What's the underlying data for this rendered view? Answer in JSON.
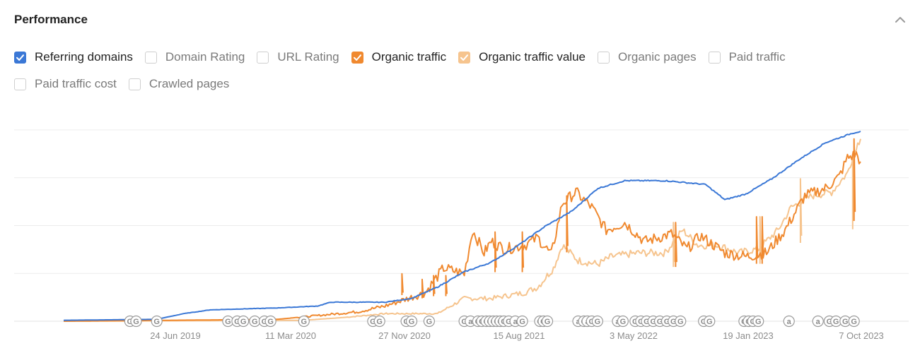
{
  "header": {
    "title": "Performance"
  },
  "options": [
    {
      "label": "Referring domains",
      "checked": true,
      "color": "#3b78d6"
    },
    {
      "label": "Domain Rating",
      "checked": false
    },
    {
      "label": "URL Rating",
      "checked": false
    },
    {
      "label": "Organic traffic",
      "checked": true,
      "color": "#f0892f"
    },
    {
      "label": "Organic traffic value",
      "checked": true,
      "color": "#f6c48e"
    },
    {
      "label": "Organic pages",
      "checked": false
    },
    {
      "label": "Paid traffic",
      "checked": false
    },
    {
      "label": "Paid traffic cost",
      "checked": false
    },
    {
      "label": "Crawled pages",
      "checked": false
    }
  ],
  "chart_data": {
    "type": "line",
    "x_ticks": [
      "24 Jun 2019",
      "11 Mar 2020",
      "27 Nov 2020",
      "15 Aug 2021",
      "3 May 2022",
      "19 Jan 2023",
      "7 Oct 2023"
    ],
    "x_range": [
      "2018-11-01",
      "2023-11-01"
    ],
    "y_range": [
      0,
      100
    ],
    "grid": true,
    "series": [
      {
        "name": "Referring domains",
        "color": "#3b78d6",
        "points": [
          [
            "2018-11-01",
            0.5
          ],
          [
            "2019-06-01",
            1
          ],
          [
            "2019-08-01",
            4
          ],
          [
            "2019-10-01",
            6
          ],
          [
            "2020-03-01",
            7
          ],
          [
            "2020-06-01",
            8
          ],
          [
            "2020-07-01",
            10
          ],
          [
            "2020-11-01",
            10
          ],
          [
            "2021-01-01",
            12
          ],
          [
            "2021-03-01",
            18
          ],
          [
            "2021-05-01",
            26
          ],
          [
            "2021-07-01",
            31
          ],
          [
            "2021-09-01",
            40
          ],
          [
            "2021-11-01",
            50
          ],
          [
            "2022-01-01",
            58
          ],
          [
            "2022-03-01",
            70
          ],
          [
            "2022-05-01",
            74
          ],
          [
            "2022-08-01",
            74
          ],
          [
            "2022-11-01",
            72
          ],
          [
            "2022-12-15",
            64
          ],
          [
            "2023-02-01",
            67
          ],
          [
            "2023-04-01",
            75
          ],
          [
            "2023-06-01",
            85
          ],
          [
            "2023-08-01",
            94
          ],
          [
            "2023-10-01",
            99
          ],
          [
            "2023-10-20",
            100
          ]
        ]
      },
      {
        "name": "Organic traffic",
        "color": "#f0892f",
        "points": [
          [
            "2018-11-01",
            0
          ],
          [
            "2020-03-01",
            1
          ],
          [
            "2020-09-01",
            5
          ],
          [
            "2020-11-01",
            8
          ],
          [
            "2021-02-01",
            15
          ],
          [
            "2021-03-15",
            28
          ],
          [
            "2021-05-01",
            25
          ],
          [
            "2021-05-20",
            48
          ],
          [
            "2021-06-15",
            36
          ],
          [
            "2021-07-01",
            42
          ],
          [
            "2021-08-01",
            38
          ],
          [
            "2021-09-15",
            40
          ],
          [
            "2021-10-15",
            44
          ],
          [
            "2021-11-15",
            35
          ],
          [
            "2021-12-10",
            62
          ],
          [
            "2022-01-10",
            68
          ],
          [
            "2022-02-15",
            60
          ],
          [
            "2022-03-20",
            48
          ],
          [
            "2022-05-01",
            52
          ],
          [
            "2022-06-15",
            42
          ],
          [
            "2022-08-15",
            46
          ],
          [
            "2022-09-20",
            38
          ],
          [
            "2022-10-20",
            45
          ],
          [
            "2022-12-15",
            36
          ],
          [
            "2023-02-01",
            34
          ],
          [
            "2023-03-20",
            36
          ],
          [
            "2023-05-01",
            48
          ],
          [
            "2023-06-15",
            66
          ],
          [
            "2023-08-01",
            70
          ],
          [
            "2023-09-01",
            76
          ],
          [
            "2023-09-20",
            86
          ],
          [
            "2023-10-10",
            88
          ],
          [
            "2023-10-20",
            84
          ]
        ],
        "spikes": [
          [
            "2020-12-10",
            25
          ],
          [
            "2021-01-25",
            22
          ],
          [
            "2021-02-20",
            24
          ],
          [
            "2021-03-20",
            24
          ],
          [
            "2021-07-10",
            47
          ],
          [
            "2021-09-10",
            47
          ],
          [
            "2021-12-20",
            66
          ],
          [
            "2022-08-25",
            52
          ],
          [
            "2023-02-25",
            55
          ],
          [
            "2023-03-10",
            55
          ],
          [
            "2023-10-05",
            96
          ]
        ]
      },
      {
        "name": "Organic traffic value",
        "color": "#f6c48e",
        "points": [
          [
            "2018-11-01",
            0
          ],
          [
            "2020-05-01",
            0.5
          ],
          [
            "2020-08-01",
            2
          ],
          [
            "2020-11-01",
            4
          ],
          [
            "2021-03-01",
            4
          ],
          [
            "2021-05-01",
            12
          ],
          [
            "2021-07-01",
            12
          ],
          [
            "2021-09-15",
            15
          ],
          [
            "2021-10-15",
            18
          ],
          [
            "2021-11-20",
            28
          ],
          [
            "2021-12-10",
            40
          ],
          [
            "2022-01-15",
            32
          ],
          [
            "2022-03-01",
            30
          ],
          [
            "2022-04-01",
            34
          ],
          [
            "2022-06-01",
            36
          ],
          [
            "2022-08-01",
            36
          ],
          [
            "2022-09-10",
            48
          ],
          [
            "2022-10-15",
            40
          ],
          [
            "2022-12-01",
            40
          ],
          [
            "2023-01-15",
            36
          ],
          [
            "2023-03-01",
            38
          ],
          [
            "2023-04-15",
            48
          ],
          [
            "2023-05-15",
            60
          ],
          [
            "2023-07-01",
            66
          ],
          [
            "2023-08-15",
            68
          ],
          [
            "2023-09-20",
            78
          ],
          [
            "2023-10-10",
            92
          ],
          [
            "2023-10-20",
            96
          ]
        ],
        "spikes": [
          [
            "2022-08-20",
            52
          ],
          [
            "2023-03-05",
            55
          ],
          [
            "2023-06-05",
            75
          ],
          [
            "2023-10-02",
            88
          ]
        ]
      }
    ],
    "markers": [
      {
        "date": "2019-04-01",
        "label": "G"
      },
      {
        "date": "2019-04-15",
        "label": "G"
      },
      {
        "date": "2019-06-01",
        "label": "G"
      },
      {
        "date": "2019-11-10",
        "label": "G"
      },
      {
        "date": "2019-12-01",
        "label": "G"
      },
      {
        "date": "2019-12-15",
        "label": "G"
      },
      {
        "date": "2020-01-10",
        "label": "G"
      },
      {
        "date": "2020-02-01",
        "label": "G"
      },
      {
        "date": "2020-02-15",
        "label": "G"
      },
      {
        "date": "2020-05-01",
        "label": "G"
      },
      {
        "date": "2020-10-05",
        "label": "G"
      },
      {
        "date": "2020-10-20",
        "label": "G"
      },
      {
        "date": "2020-12-20",
        "label": "G"
      },
      {
        "date": "2021-01-01",
        "label": "G"
      },
      {
        "date": "2021-02-10",
        "label": "G"
      },
      {
        "date": "2021-05-01",
        "label": "G"
      },
      {
        "date": "2021-05-15",
        "label": "a"
      },
      {
        "date": "2021-06-01",
        "label": "G"
      },
      {
        "date": "2021-06-10",
        "label": "G"
      },
      {
        "date": "2021-06-20",
        "label": "G"
      },
      {
        "date": "2021-06-28",
        "label": "G"
      },
      {
        "date": "2021-07-06",
        "label": "G"
      },
      {
        "date": "2021-07-14",
        "label": "G"
      },
      {
        "date": "2021-07-22",
        "label": "G"
      },
      {
        "date": "2021-07-30",
        "label": "G"
      },
      {
        "date": "2021-08-10",
        "label": "G"
      },
      {
        "date": "2021-08-25",
        "label": "a"
      },
      {
        "date": "2021-09-10",
        "label": "G"
      },
      {
        "date": "2021-10-20",
        "label": "G"
      },
      {
        "date": "2021-10-28",
        "label": "G"
      },
      {
        "date": "2021-11-06",
        "label": "G"
      },
      {
        "date": "2022-01-15",
        "label": "a"
      },
      {
        "date": "2022-01-28",
        "label": "G"
      },
      {
        "date": "2022-02-05",
        "label": "a"
      },
      {
        "date": "2022-02-15",
        "label": "G"
      },
      {
        "date": "2022-02-28",
        "label": "G"
      },
      {
        "date": "2022-04-15",
        "label": "a"
      },
      {
        "date": "2022-04-27",
        "label": "G"
      },
      {
        "date": "2022-05-25",
        "label": "G"
      },
      {
        "date": "2022-06-07",
        "label": "G"
      },
      {
        "date": "2022-06-20",
        "label": "G"
      },
      {
        "date": "2022-07-05",
        "label": "G"
      },
      {
        "date": "2022-07-20",
        "label": "G"
      },
      {
        "date": "2022-08-05",
        "label": "G"
      },
      {
        "date": "2022-08-20",
        "label": "G"
      },
      {
        "date": "2022-09-05",
        "label": "G"
      },
      {
        "date": "2022-10-28",
        "label": "G"
      },
      {
        "date": "2022-11-10",
        "label": "G"
      },
      {
        "date": "2023-01-28",
        "label": "G"
      },
      {
        "date": "2023-02-07",
        "label": "G"
      },
      {
        "date": "2023-02-17",
        "label": "G"
      },
      {
        "date": "2023-03-01",
        "label": "G"
      },
      {
        "date": "2023-05-10",
        "label": "a"
      },
      {
        "date": "2023-07-15",
        "label": "a"
      },
      {
        "date": "2023-08-10",
        "label": "G"
      },
      {
        "date": "2023-08-25",
        "label": "G"
      },
      {
        "date": "2023-09-15",
        "label": "G"
      },
      {
        "date": "2023-10-05",
        "label": "G"
      }
    ]
  }
}
